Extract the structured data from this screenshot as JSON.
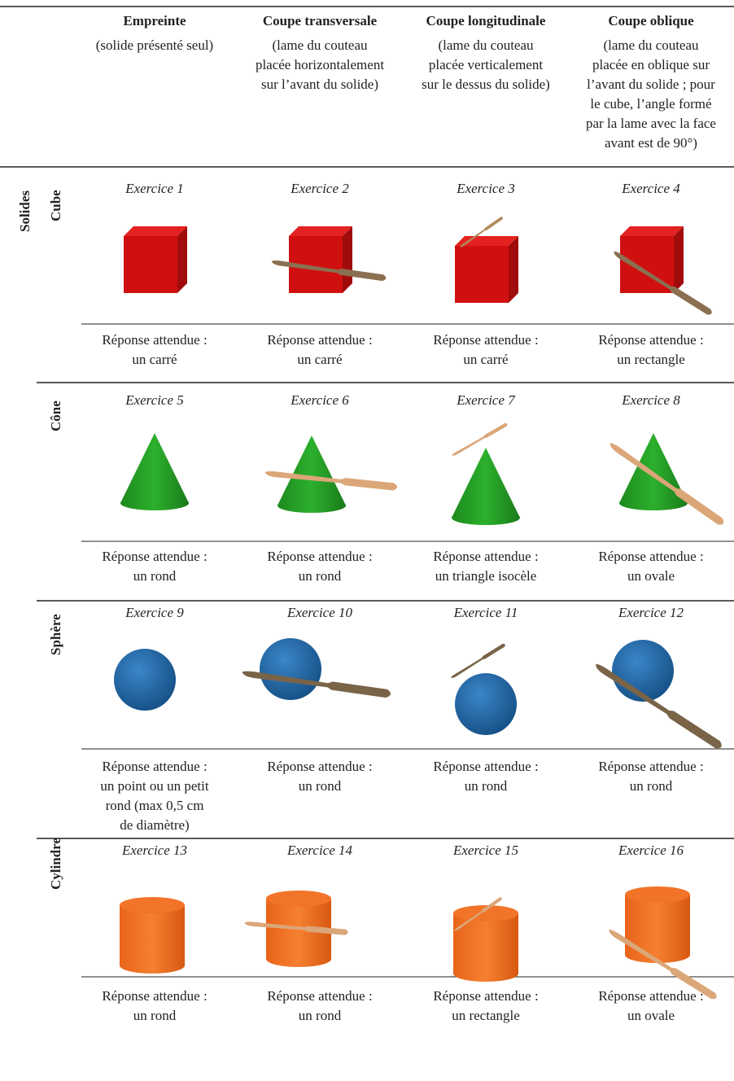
{
  "group_label": "Solides",
  "header": {
    "columns": [
      {
        "title": "Empreinte",
        "subtitle": [
          "(solide présenté seul)"
        ]
      },
      {
        "title": "Coupe transversale",
        "subtitle": [
          "(lame du couteau",
          "placée horizontalement",
          "sur l’avant du solide)"
        ]
      },
      {
        "title": "Coupe longitudinale",
        "subtitle": [
          "(lame du couteau",
          "placée verticalement",
          "sur le dessus du solide)"
        ]
      },
      {
        "title": "Coupe oblique",
        "subtitle": [
          "(lame du couteau",
          "placée en oblique sur",
          "l’avant du solide ; pour",
          "le cube, l’angle formé",
          "par la lame avec la face",
          "avant est de 90°)"
        ]
      }
    ]
  },
  "rows": [
    {
      "solid": "Cube",
      "cells": [
        {
          "exercise": "Exercice 1",
          "answer": [
            "Réponse attendue :",
            "un carré"
          ]
        },
        {
          "exercise": "Exercice 2",
          "answer": [
            "Réponse attendue :",
            "un carré"
          ]
        },
        {
          "exercise": "Exercice 3",
          "answer": [
            "Réponse attendue :",
            "un carré"
          ]
        },
        {
          "exercise": "Exercice 4",
          "answer": [
            "Réponse attendue :",
            "un rectangle"
          ]
        }
      ]
    },
    {
      "solid": "Cône",
      "cells": [
        {
          "exercise": "Exercice 5",
          "answer": [
            "Réponse attendue :",
            "un rond"
          ]
        },
        {
          "exercise": "Exercice 6",
          "answer": [
            "Réponse attendue :",
            "un rond"
          ]
        },
        {
          "exercise": "Exercice 7",
          "answer": [
            "Réponse attendue :",
            "un triangle isocèle"
          ]
        },
        {
          "exercise": "Exercice 8",
          "answer": [
            "Réponse attendue :",
            "un ovale"
          ]
        }
      ]
    },
    {
      "solid": "Sphère",
      "cells": [
        {
          "exercise": "Exercice 9",
          "answer": [
            "Réponse attendue :",
            "un point ou un petit",
            "rond (max 0,5 cm",
            "de diamètre)"
          ]
        },
        {
          "exercise": "Exercice 10",
          "answer": [
            "Réponse attendue :",
            "un rond"
          ]
        },
        {
          "exercise": "Exercice 11",
          "answer": [
            "Réponse attendue :",
            "un rond"
          ]
        },
        {
          "exercise": "Exercice 12",
          "answer": [
            "Réponse attendue :",
            "un rond"
          ]
        }
      ]
    },
    {
      "solid": "Cylindre",
      "cells": [
        {
          "exercise": "Exercice 13",
          "answer": [
            "Réponse attendue :",
            "un rond"
          ]
        },
        {
          "exercise": "Exercice 14",
          "answer": [
            "Réponse attendue :",
            "un rond"
          ]
        },
        {
          "exercise": "Exercice 15",
          "answer": [
            "Réponse attendue :",
            "un rectangle"
          ]
        },
        {
          "exercise": "Exercice 16",
          "answer": [
            "Réponse attendue :",
            "un ovale"
          ]
        }
      ]
    }
  ]
}
